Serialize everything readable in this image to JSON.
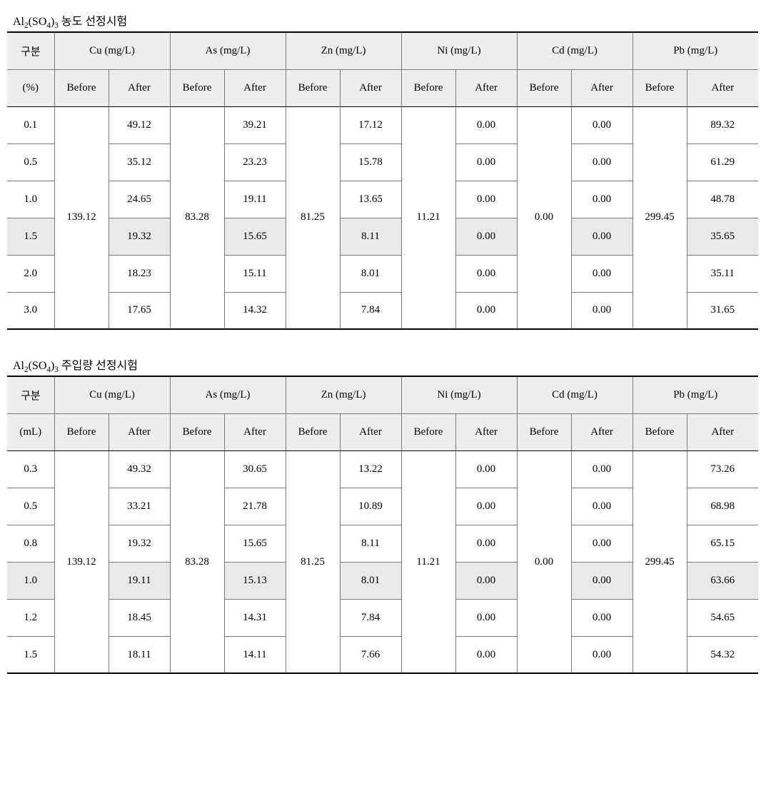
{
  "colors": {
    "background": "#ffffff",
    "text": "#000000",
    "header_fill": "#ededed",
    "highlight_fill": "#e9e9e9",
    "border": "#7a7a7a",
    "rule": "#000000"
  },
  "typography": {
    "body_fontsize_pt": 11,
    "caption_fontsize_pt": 12,
    "font_family": "Times New Roman / Batang (serif)"
  },
  "labels": {
    "before": "Before",
    "after": "After",
    "gubun": "구분"
  },
  "tables": [
    {
      "caption_html": "Al<sub>2</sub>(SO<sub>4</sub>)<sub>3</sub> 농도 선정시험",
      "row_unit": "(%)",
      "metals": [
        "Cu (mg/L)",
        "As (mg/L)",
        "Zn (mg/L)",
        "Ni (mg/L)",
        "Cd (mg/L)",
        "Pb (mg/L)"
      ],
      "before_values": [
        "139.12",
        "83.28",
        "81.25",
        "11.21",
        "0.00",
        "299.45"
      ],
      "highlight_row_index": 3,
      "rows": [
        {
          "label": "0.1",
          "after": [
            "49.12",
            "39.21",
            "17.12",
            "0.00",
            "0.00",
            "89.32"
          ]
        },
        {
          "label": "0.5",
          "after": [
            "35.12",
            "23.23",
            "15.78",
            "0.00",
            "0.00",
            "61.29"
          ]
        },
        {
          "label": "1.0",
          "after": [
            "24.65",
            "19.11",
            "13.65",
            "0.00",
            "0.00",
            "48.78"
          ]
        },
        {
          "label": "1.5",
          "after": [
            "19.32",
            "15.65",
            "8.11",
            "0.00",
            "0.00",
            "35.65"
          ]
        },
        {
          "label": "2.0",
          "after": [
            "18.23",
            "15.11",
            "8.01",
            "0.00",
            "0.00",
            "35.11"
          ]
        },
        {
          "label": "3.0",
          "after": [
            "17.65",
            "14.32",
            "7.84",
            "0.00",
            "0.00",
            "31.65"
          ]
        }
      ]
    },
    {
      "caption_html": "Al<sub>2</sub>(SO<sub>4</sub>)<sub>3</sub> 주입량 선정시험",
      "row_unit": "(mL)",
      "metals": [
        "Cu (mg/L)",
        "As (mg/L)",
        "Zn (mg/L)",
        "Ni (mg/L)",
        "Cd (mg/L)",
        "Pb (mg/L)"
      ],
      "before_values": [
        "139.12",
        "83.28",
        "81.25",
        "11.21",
        "0.00",
        "299.45"
      ],
      "highlight_row_index": 3,
      "rows": [
        {
          "label": "0.3",
          "after": [
            "49.32",
            "30.65",
            "13.22",
            "0.00",
            "0.00",
            "73.26"
          ]
        },
        {
          "label": "0.5",
          "after": [
            "33.21",
            "21.78",
            "10.89",
            "0.00",
            "0.00",
            "68.98"
          ]
        },
        {
          "label": "0.8",
          "after": [
            "19.32",
            "15.65",
            "8.11",
            "0.00",
            "0.00",
            "65.15"
          ]
        },
        {
          "label": "1.0",
          "after": [
            "19.11",
            "15.13",
            "8.01",
            "0.00",
            "0.00",
            "63.66"
          ]
        },
        {
          "label": "1.2",
          "after": [
            "18.45",
            "14.31",
            "7.84",
            "0.00",
            "0.00",
            "54.65"
          ]
        },
        {
          "label": "1.5",
          "after": [
            "18.11",
            "14.11",
            "7.66",
            "0.00",
            "0.00",
            "54.32"
          ]
        }
      ]
    }
  ]
}
